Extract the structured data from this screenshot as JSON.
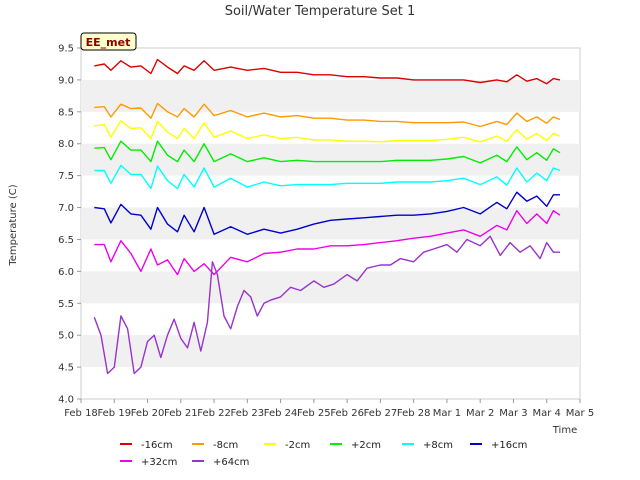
{
  "chart_data": {
    "type": "line",
    "title": "Soil/Water Temperature Set 1",
    "xlabel": "Time",
    "ylabel": "Temperature (C)",
    "badge": "EE_met",
    "xlim": [
      0,
      15
    ],
    "ylim": [
      4.0,
      9.5
    ],
    "x_ticks": [
      "Feb 18",
      "Feb 19",
      "Feb 20",
      "Feb 21",
      "Feb 22",
      "Feb 23",
      "Feb 24",
      "Feb 25",
      "Feb 26",
      "Feb 27",
      "Feb 28",
      "Mar 1",
      "Mar 2",
      "Mar 3",
      "Mar 4",
      "Mar 5"
    ],
    "y_ticks": [
      "4.0",
      "4.5",
      "5.0",
      "5.5",
      "6.0",
      "6.5",
      "7.0",
      "7.5",
      "8.0",
      "8.5",
      "9.0",
      "9.5"
    ],
    "grid": "horizontal alternating bands",
    "legend_position": "bottom",
    "series": [
      {
        "name": "-16cm",
        "color": "#dd0000",
        "x": [
          0.4,
          0.7,
          0.9,
          1.2,
          1.5,
          1.8,
          2.1,
          2.3,
          2.6,
          2.9,
          3.1,
          3.4,
          3.7,
          4.0,
          4.5,
          5.0,
          5.5,
          6.0,
          6.5,
          7.0,
          7.5,
          8.0,
          8.5,
          9.0,
          9.5,
          10.0,
          10.5,
          11.0,
          11.5,
          12.0,
          12.5,
          12.8,
          13.1,
          13.4,
          13.7,
          14.0,
          14.2,
          14.4
        ],
        "y": [
          9.22,
          9.25,
          9.15,
          9.3,
          9.2,
          9.22,
          9.1,
          9.32,
          9.2,
          9.1,
          9.22,
          9.15,
          9.3,
          9.15,
          9.2,
          9.15,
          9.18,
          9.12,
          9.12,
          9.08,
          9.08,
          9.05,
          9.05,
          9.03,
          9.03,
          9.0,
          9.0,
          9.0,
          9.0,
          8.96,
          9.0,
          8.97,
          9.08,
          8.98,
          9.02,
          8.94,
          9.02,
          9.0
        ]
      },
      {
        "name": "-8cm",
        "color": "#ff9900",
        "x": [
          0.4,
          0.7,
          0.9,
          1.2,
          1.5,
          1.8,
          2.1,
          2.3,
          2.6,
          2.9,
          3.1,
          3.4,
          3.7,
          4.0,
          4.5,
          5.0,
          5.5,
          6.0,
          6.5,
          7.0,
          7.5,
          8.0,
          8.5,
          9.0,
          9.5,
          10.0,
          10.5,
          11.0,
          11.5,
          12.0,
          12.5,
          12.8,
          13.1,
          13.4,
          13.7,
          14.0,
          14.2,
          14.4
        ],
        "y": [
          8.57,
          8.58,
          8.42,
          8.62,
          8.55,
          8.56,
          8.4,
          8.63,
          8.5,
          8.42,
          8.55,
          8.42,
          8.62,
          8.44,
          8.52,
          8.42,
          8.48,
          8.42,
          8.44,
          8.4,
          8.4,
          8.37,
          8.37,
          8.35,
          8.35,
          8.33,
          8.33,
          8.33,
          8.34,
          8.27,
          8.35,
          8.3,
          8.48,
          8.35,
          8.42,
          8.32,
          8.42,
          8.38
        ]
      },
      {
        "name": "-2cm",
        "color": "#ffff00",
        "x": [
          0.4,
          0.7,
          0.9,
          1.2,
          1.5,
          1.8,
          2.1,
          2.3,
          2.6,
          2.9,
          3.1,
          3.4,
          3.7,
          4.0,
          4.5,
          5.0,
          5.5,
          6.0,
          6.5,
          7.0,
          7.5,
          8.0,
          8.5,
          9.0,
          9.5,
          10.0,
          10.5,
          11.0,
          11.5,
          12.0,
          12.5,
          12.8,
          13.1,
          13.4,
          13.7,
          14.0,
          14.2,
          14.4
        ],
        "y": [
          8.28,
          8.3,
          8.1,
          8.36,
          8.24,
          8.25,
          8.08,
          8.35,
          8.18,
          8.08,
          8.24,
          8.08,
          8.33,
          8.1,
          8.2,
          8.08,
          8.14,
          8.08,
          8.1,
          8.06,
          8.06,
          8.04,
          8.04,
          8.03,
          8.05,
          8.05,
          8.05,
          8.07,
          8.1,
          8.03,
          8.12,
          8.04,
          8.22,
          8.07,
          8.16,
          8.05,
          8.16,
          8.12
        ]
      },
      {
        "name": "+2cm",
        "color": "#00ee00",
        "x": [
          0.4,
          0.7,
          0.9,
          1.2,
          1.5,
          1.8,
          2.1,
          2.3,
          2.6,
          2.9,
          3.1,
          3.4,
          3.7,
          4.0,
          4.5,
          5.0,
          5.5,
          6.0,
          6.5,
          7.0,
          7.5,
          8.0,
          8.5,
          9.0,
          9.5,
          10.0,
          10.5,
          11.0,
          11.5,
          12.0,
          12.5,
          12.8,
          13.1,
          13.4,
          13.7,
          14.0,
          14.2,
          14.4
        ],
        "y": [
          7.93,
          7.94,
          7.75,
          8.04,
          7.9,
          7.9,
          7.72,
          8.04,
          7.82,
          7.72,
          7.9,
          7.72,
          8.0,
          7.72,
          7.84,
          7.72,
          7.78,
          7.72,
          7.74,
          7.72,
          7.72,
          7.72,
          7.72,
          7.72,
          7.74,
          7.74,
          7.74,
          7.76,
          7.8,
          7.7,
          7.82,
          7.72,
          7.95,
          7.75,
          7.86,
          7.74,
          7.92,
          7.86
        ]
      },
      {
        "name": "+8cm",
        "color": "#00ffff",
        "x": [
          0.4,
          0.7,
          0.9,
          1.2,
          1.5,
          1.8,
          2.1,
          2.3,
          2.6,
          2.9,
          3.1,
          3.4,
          3.7,
          4.0,
          4.5,
          5.0,
          5.5,
          6.0,
          6.5,
          7.0,
          7.5,
          8.0,
          8.5,
          9.0,
          9.5,
          10.0,
          10.5,
          11.0,
          11.5,
          12.0,
          12.5,
          12.8,
          13.1,
          13.4,
          13.7,
          14.0,
          14.2,
          14.4
        ],
        "y": [
          7.58,
          7.58,
          7.38,
          7.66,
          7.52,
          7.52,
          7.3,
          7.65,
          7.42,
          7.3,
          7.52,
          7.32,
          7.62,
          7.32,
          7.46,
          7.32,
          7.4,
          7.34,
          7.36,
          7.36,
          7.36,
          7.38,
          7.38,
          7.38,
          7.4,
          7.4,
          7.4,
          7.42,
          7.46,
          7.36,
          7.48,
          7.35,
          7.62,
          7.4,
          7.54,
          7.42,
          7.62,
          7.58
        ]
      },
      {
        "name": "+16cm",
        "color": "#0000cc",
        "x": [
          0.4,
          0.7,
          0.9,
          1.2,
          1.5,
          1.8,
          2.1,
          2.3,
          2.6,
          2.9,
          3.1,
          3.4,
          3.7,
          4.0,
          4.5,
          5.0,
          5.5,
          6.0,
          6.5,
          7.0,
          7.5,
          8.0,
          8.5,
          9.0,
          9.5,
          10.0,
          10.5,
          11.0,
          11.5,
          12.0,
          12.5,
          12.8,
          13.1,
          13.4,
          13.7,
          14.0,
          14.2,
          14.4
        ],
        "y": [
          7.0,
          6.98,
          6.76,
          7.05,
          6.9,
          6.88,
          6.66,
          7.0,
          6.74,
          6.62,
          6.88,
          6.62,
          7.0,
          6.58,
          6.7,
          6.58,
          6.66,
          6.6,
          6.66,
          6.74,
          6.8,
          6.82,
          6.84,
          6.86,
          6.88,
          6.88,
          6.9,
          6.94,
          7.0,
          6.9,
          7.08,
          6.98,
          7.24,
          7.1,
          7.18,
          7.02,
          7.2,
          7.2
        ]
      },
      {
        "name": "+32cm",
        "color": "#ee00ee",
        "x": [
          0.4,
          0.7,
          0.9,
          1.2,
          1.5,
          1.8,
          2.1,
          2.3,
          2.6,
          2.9,
          3.1,
          3.4,
          3.7,
          4.0,
          4.5,
          5.0,
          5.5,
          6.0,
          6.5,
          7.0,
          7.5,
          8.0,
          8.5,
          9.0,
          9.5,
          10.0,
          10.5,
          11.0,
          11.5,
          12.0,
          12.5,
          12.8,
          13.1,
          13.4,
          13.7,
          14.0,
          14.2,
          14.4
        ],
        "y": [
          6.42,
          6.42,
          6.15,
          6.48,
          6.28,
          6.0,
          6.35,
          6.1,
          6.18,
          5.95,
          6.2,
          6.0,
          6.12,
          5.95,
          6.22,
          6.15,
          6.28,
          6.3,
          6.35,
          6.35,
          6.4,
          6.4,
          6.42,
          6.45,
          6.48,
          6.52,
          6.55,
          6.6,
          6.65,
          6.55,
          6.72,
          6.65,
          6.95,
          6.75,
          6.9,
          6.75,
          6.95,
          6.88
        ]
      },
      {
        "name": "+64cm",
        "color": "#9933cc",
        "x": [
          0.4,
          0.6,
          0.8,
          1.0,
          1.2,
          1.4,
          1.6,
          1.8,
          2.0,
          2.2,
          2.4,
          2.6,
          2.8,
          3.0,
          3.2,
          3.4,
          3.6,
          3.8,
          3.95,
          4.1,
          4.3,
          4.5,
          4.7,
          4.9,
          5.1,
          5.3,
          5.5,
          5.7,
          6.0,
          6.3,
          6.6,
          7.0,
          7.3,
          7.6,
          8.0,
          8.3,
          8.6,
          9.0,
          9.3,
          9.6,
          10.0,
          10.3,
          10.6,
          11.0,
          11.3,
          11.6,
          12.0,
          12.3,
          12.6,
          12.9,
          13.2,
          13.5,
          13.8,
          14.0,
          14.2,
          14.4
        ],
        "y": [
          5.28,
          5.0,
          4.4,
          4.5,
          5.3,
          5.1,
          4.4,
          4.5,
          4.9,
          5.0,
          4.65,
          5.0,
          5.25,
          4.95,
          4.8,
          5.2,
          4.75,
          5.2,
          6.15,
          5.95,
          5.3,
          5.1,
          5.45,
          5.7,
          5.6,
          5.3,
          5.5,
          5.55,
          5.6,
          5.75,
          5.7,
          5.85,
          5.75,
          5.8,
          5.95,
          5.85,
          6.05,
          6.1,
          6.1,
          6.2,
          6.15,
          6.3,
          6.35,
          6.42,
          6.3,
          6.5,
          6.4,
          6.55,
          6.25,
          6.45,
          6.3,
          6.4,
          6.2,
          6.45,
          6.3,
          6.3
        ]
      }
    ]
  }
}
